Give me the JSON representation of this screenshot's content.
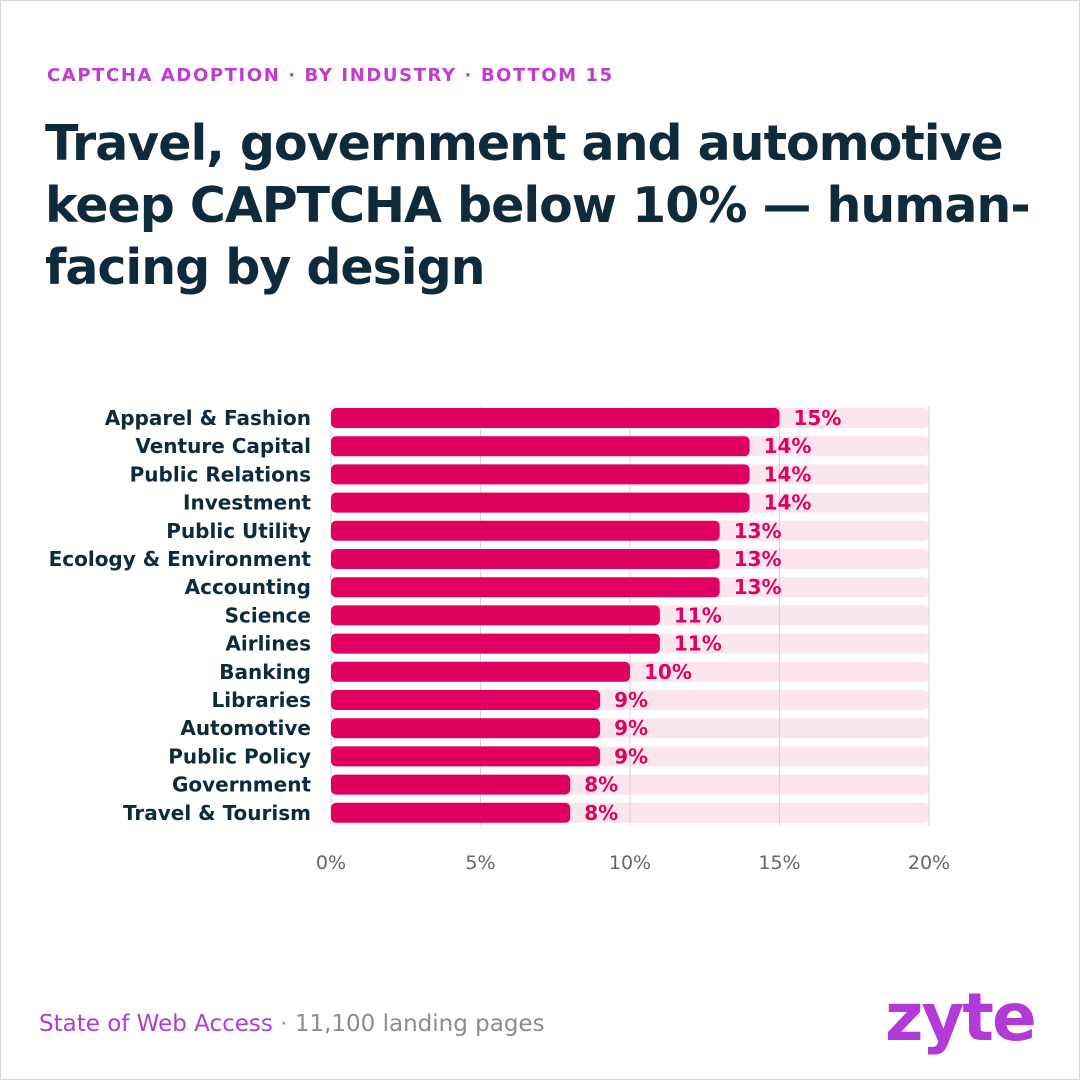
{
  "eyebrow": "CAPTCHA ADOPTION · BY INDUSTRY · BOTTOM 15",
  "headline": "Travel, government and automotive keep CAPTCHA below 10% — human-facing by design",
  "footer": {
    "source": "State of Web Access",
    "separator": " · ",
    "meta": "11,100 landing pages"
  },
  "logo": "zyte",
  "colors": {
    "bar": "#e0005f",
    "track": "#fbe6ee",
    "label": "#0f2a3a",
    "value_label": "#e0005f",
    "grid": "#d6d6d6",
    "tick": "#666666"
  },
  "chart_data": {
    "type": "bar",
    "orientation": "horizontal",
    "categories": [
      "Apparel & Fashion",
      "Venture Capital",
      "Public Relations",
      "Investment",
      "Public Utility",
      "Ecology & Environment",
      "Accounting",
      "Science",
      "Airlines",
      "Banking",
      "Libraries",
      "Automotive",
      "Public Policy",
      "Government",
      "Travel & Tourism"
    ],
    "values": [
      15,
      14,
      14,
      14,
      13,
      13,
      13,
      11,
      11,
      10,
      9,
      9,
      9,
      8,
      8
    ],
    "value_labels": [
      "15%",
      "14%",
      "14%",
      "14%",
      "13%",
      "13%",
      "13%",
      "11%",
      "11%",
      "10%",
      "9%",
      "9%",
      "9%",
      "8%",
      "8%"
    ],
    "xlim": [
      0,
      20
    ],
    "xticks": [
      0,
      5,
      10,
      15,
      20
    ],
    "xtick_labels": [
      "0%",
      "5%",
      "10%",
      "15%",
      "20%"
    ],
    "title": "",
    "xlabel": "",
    "ylabel": "",
    "grid": true,
    "legend": "none"
  }
}
